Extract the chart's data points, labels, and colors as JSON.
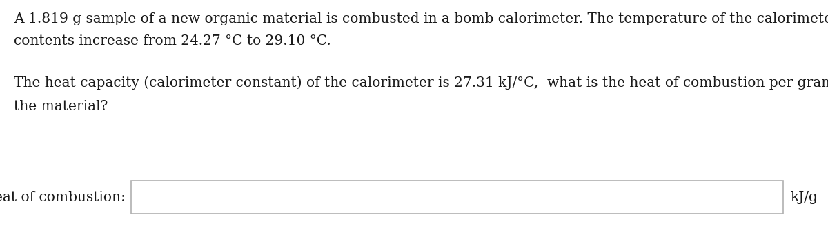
{
  "line1": "A 1.819 g sample of a new organic material is combusted in a bomb calorimeter. The temperature of the calorimeter and its",
  "line2": "contents increase from 24.27 °C to 29.10 °C.",
  "line3": "The heat capacity (calorimeter constant) of the calorimeter is 27.31 kJ/°C,  what is the heat of combustion per gram of",
  "line4": "the material?",
  "label": "heat of combustion:",
  "unit": "kJ/g",
  "bg_color": "#ffffff",
  "text_color": "#1a1a1a",
  "font_size": 14.5,
  "box_edge_color": "#b0b0b0",
  "box_fill_color": "#ffffff"
}
